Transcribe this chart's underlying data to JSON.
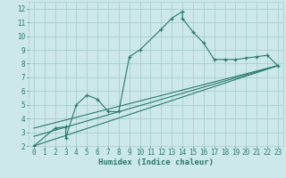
{
  "title": "",
  "xlabel": "Humidex (Indice chaleur)",
  "background_color": "#cce8e8",
  "grid_color": "#aacece",
  "line_color": "#2a7a6a",
  "xlim": [
    -0.5,
    23.5
  ],
  "ylim": [
    2,
    12.5
  ],
  "xtick_vals": [
    0,
    1,
    2,
    3,
    4,
    5,
    6,
    7,
    8,
    9,
    10,
    11,
    12,
    13,
    14,
    15,
    16,
    17,
    18,
    19,
    20,
    21,
    22,
    23
  ],
  "ytick_vals": [
    2,
    3,
    4,
    5,
    6,
    7,
    8,
    9,
    10,
    11,
    12
  ],
  "main_x": [
    0,
    2,
    3,
    3,
    4,
    5,
    6,
    7,
    8,
    9,
    10,
    12,
    13,
    14,
    14,
    15,
    16,
    17,
    18,
    19,
    20,
    21,
    22,
    23
  ],
  "main_y": [
    2.0,
    3.3,
    3.4,
    2.6,
    5.0,
    5.7,
    5.4,
    4.5,
    4.5,
    8.5,
    9.0,
    10.5,
    11.3,
    11.8,
    11.3,
    10.3,
    9.5,
    8.3,
    8.3,
    8.3,
    8.4,
    8.5,
    8.6,
    7.85
  ],
  "line2_x": [
    0,
    23
  ],
  "line2_y": [
    3.3,
    7.85
  ],
  "line3_x": [
    0,
    23
  ],
  "line3_y": [
    2.7,
    7.85
  ],
  "line4_x": [
    0,
    23
  ],
  "line4_y": [
    2.0,
    7.85
  ]
}
